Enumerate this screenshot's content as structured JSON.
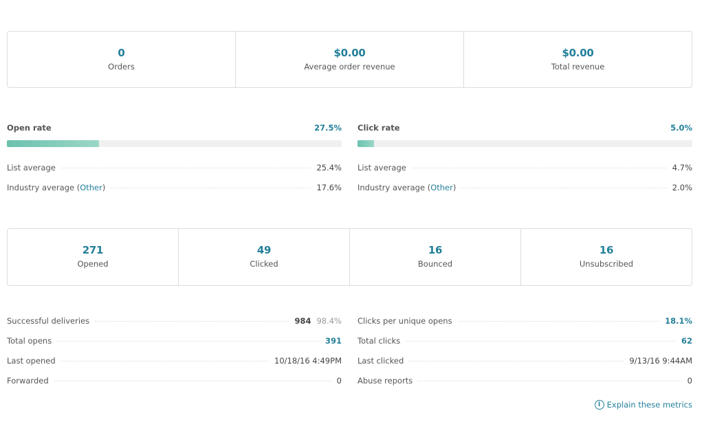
{
  "revenue": [
    {
      "value": "0",
      "label": "Orders"
    },
    {
      "value": "$0.00",
      "label": "Average order revenue"
    },
    {
      "value": "$0.00",
      "label": "Total revenue"
    }
  ],
  "open_rate": {
    "title": "Open rate",
    "value": "27.5%",
    "fill_percent": 27.5,
    "list_avg_label": "List average",
    "list_avg": "25.4%",
    "industry_label": "Industry average (",
    "industry_link": "Other",
    "industry_close": ")",
    "industry_avg": "17.6%"
  },
  "click_rate": {
    "title": "Click rate",
    "value": "5.0%",
    "fill_percent": 5.0,
    "list_avg_label": "List average",
    "list_avg": "4.7%",
    "industry_label": "Industry average (",
    "industry_link": "Other",
    "industry_close": ")",
    "industry_avg": "2.0%"
  },
  "engagement": [
    {
      "value": "271",
      "label": "Opened"
    },
    {
      "value": "49",
      "label": "Clicked"
    },
    {
      "value": "16",
      "label": "Bounced"
    },
    {
      "value": "16",
      "label": "Unsubscribed"
    }
  ],
  "left_stats": [
    {
      "label": "Successful deliveries",
      "value": "984",
      "sub": "98.4%"
    },
    {
      "label": "Total opens",
      "value": "391"
    },
    {
      "label": "Last opened",
      "value": "10/18/16 4:49PM"
    },
    {
      "label": "Forwarded",
      "value": "0"
    }
  ],
  "right_stats": [
    {
      "label": "Clicks per unique opens",
      "value": "18.1%"
    },
    {
      "label": "Total clicks",
      "value": "62"
    },
    {
      "label": "Last clicked",
      "value": "9/13/16 9:44AM"
    },
    {
      "label": "Abuse reports",
      "value": "0"
    }
  ],
  "explain_link": "Explain these metrics",
  "colors": {
    "accent": "#24809a",
    "bar_fill": "#6cc2ae"
  }
}
